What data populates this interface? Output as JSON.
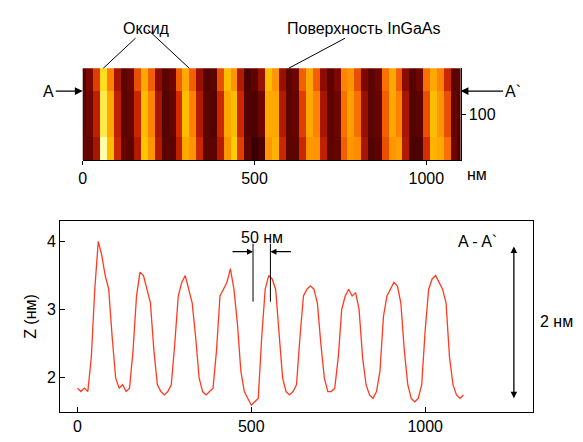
{
  "chart_data": [
    {
      "type": "heatmap",
      "x": [
        0,
        20,
        40,
        60,
        80,
        100,
        120,
        140,
        160,
        180,
        200,
        220,
        240,
        260,
        280,
        300,
        320,
        340,
        360,
        380,
        400,
        420,
        440,
        460,
        480,
        500,
        520,
        540,
        560,
        580,
        600,
        620,
        640,
        660,
        680,
        700,
        720,
        740,
        760,
        780,
        800,
        820,
        840,
        860,
        880,
        900,
        920,
        940,
        960,
        980,
        1000,
        1020,
        1040,
        1060,
        1080,
        1100
      ],
      "y": [
        0,
        100,
        200
      ],
      "z": [
        [
          1.85,
          1.85,
          2.3,
          4.0,
          3.5,
          2.6,
          1.85,
          1.8,
          2.4,
          3.55,
          3.3,
          2.4,
          1.8,
          1.8,
          2.5,
          3.4,
          3.3,
          2.6,
          1.8,
          1.8,
          2.4,
          3.3,
          3.6,
          2.8,
          1.8,
          1.6,
          1.7,
          3.3,
          3.45,
          2.6,
          1.8,
          1.8,
          2.6,
          3.3,
          3.3,
          2.5,
          1.8,
          1.85,
          3.0,
          3.3,
          3.25,
          2.3,
          1.75,
          1.8,
          2.9,
          3.3,
          3.35,
          2.4,
          1.7,
          1.7,
          2.7,
          3.45,
          3.4,
          3.1,
          1.9,
          1.7
        ],
        [
          1.8,
          1.9,
          2.5,
          3.8,
          3.4,
          2.5,
          1.8,
          1.85,
          2.6,
          3.5,
          3.2,
          2.3,
          1.75,
          1.85,
          2.7,
          3.5,
          3.2,
          2.4,
          1.8,
          1.75,
          2.6,
          3.4,
          3.5,
          2.6,
          1.75,
          1.7,
          1.9,
          3.4,
          3.4,
          2.4,
          1.8,
          1.85,
          2.8,
          3.4,
          3.2,
          2.3,
          1.8,
          1.9,
          3.1,
          3.35,
          3.1,
          2.2,
          1.8,
          1.85,
          3.0,
          3.4,
          3.2,
          2.3,
          1.75,
          1.8,
          2.9,
          3.5,
          3.3,
          2.9,
          1.85,
          1.75
        ],
        [
          1.75,
          2.0,
          2.8,
          3.7,
          3.2,
          2.3,
          1.8,
          1.9,
          2.9,
          3.4,
          3.0,
          2.1,
          1.8,
          1.9,
          3.0,
          3.4,
          3.0,
          2.2,
          1.75,
          1.8,
          2.9,
          3.5,
          3.3,
          2.4,
          1.7,
          1.8,
          2.2,
          3.5,
          3.3,
          2.2,
          1.8,
          1.9,
          3.0,
          3.4,
          3.0,
          2.1,
          1.8,
          2.0,
          3.2,
          3.3,
          2.9,
          2.0,
          1.8,
          1.9,
          3.1,
          3.4,
          3.0,
          2.1,
          1.75,
          1.9,
          3.1,
          3.4,
          3.2,
          2.6,
          1.8,
          1.8
        ]
      ],
      "xlim": [
        0,
        1100
      ],
      "xticks": [
        0,
        500,
        1000
      ],
      "ylim": [
        0,
        200
      ],
      "yticks": [
        100
      ],
      "xlabel": "нм",
      "annotations": [
        {
          "text": "Оксид",
          "x": [
            60,
            310
          ],
          "y": 200
        },
        {
          "text": "Поверхность InGaAs",
          "x": 600,
          "y": 200
        },
        {
          "text": "A",
          "x": 0,
          "y": 150
        },
        {
          "text": "A`",
          "x": 1100,
          "y": 150
        }
      ]
    },
    {
      "type": "line",
      "x": [
        0,
        10,
        20,
        30,
        40,
        50,
        60,
        70,
        80,
        90,
        100,
        110,
        120,
        130,
        140,
        150,
        160,
        170,
        180,
        190,
        200,
        210,
        220,
        230,
        240,
        250,
        260,
        270,
        280,
        290,
        300,
        310,
        320,
        330,
        340,
        350,
        360,
        370,
        380,
        390,
        400,
        410,
        420,
        430,
        440,
        450,
        460,
        470,
        480,
        490,
        500,
        510,
        520,
        530,
        540,
        550,
        560,
        570,
        580,
        590,
        600,
        610,
        620,
        630,
        640,
        650,
        660,
        670,
        680,
        690,
        700,
        710,
        720,
        730,
        740,
        750,
        760,
        770,
        780,
        790,
        800,
        810,
        820,
        830,
        840,
        850,
        860,
        870,
        880,
        890,
        900,
        910,
        920,
        930,
        940,
        950,
        960,
        970,
        980,
        990,
        1000,
        1010,
        1020,
        1030,
        1040,
        1050,
        1060,
        1070,
        1080,
        1090,
        1100,
        1110
      ],
      "values": [
        1.85,
        1.8,
        1.85,
        1.8,
        2.3,
        3.3,
        4.0,
        3.8,
        3.5,
        3.3,
        2.6,
        2.0,
        1.85,
        1.9,
        1.8,
        1.85,
        2.4,
        3.2,
        3.55,
        3.5,
        3.3,
        3.1,
        2.4,
        1.9,
        1.8,
        1.75,
        1.8,
        1.9,
        2.5,
        3.2,
        3.4,
        3.5,
        3.3,
        3.1,
        2.6,
        2.0,
        1.8,
        1.75,
        1.8,
        1.85,
        2.4,
        3.2,
        3.3,
        3.4,
        3.6,
        3.3,
        2.8,
        2.1,
        1.8,
        1.7,
        1.6,
        1.65,
        1.7,
        2.6,
        3.3,
        3.5,
        3.45,
        3.3,
        2.6,
        2.0,
        1.8,
        1.75,
        1.8,
        1.9,
        2.6,
        3.2,
        3.3,
        3.35,
        3.3,
        3.1,
        2.5,
        2.0,
        1.8,
        1.8,
        1.85,
        2.3,
        3.0,
        3.2,
        3.3,
        3.2,
        3.25,
        3.0,
        2.3,
        1.9,
        1.75,
        1.7,
        1.8,
        2.1,
        2.9,
        3.2,
        3.3,
        3.4,
        3.35,
        3.1,
        2.4,
        1.9,
        1.7,
        1.65,
        1.7,
        1.9,
        2.7,
        3.3,
        3.45,
        3.5,
        3.4,
        3.3,
        3.1,
        2.3,
        1.9,
        1.75,
        1.7,
        1.75
      ],
      "color": "#ff3b1f",
      "xlim": [
        -50,
        1310
      ],
      "xticks": [
        0,
        500,
        1000
      ],
      "ylim": [
        1.5,
        4.3
      ],
      "yticks": [
        2,
        3,
        4
      ],
      "ylabel": "Z (нм)",
      "annotations": [
        {
          "text": "50 нм",
          "x0": 505,
          "x1": 555,
          "y": 3.85
        },
        {
          "text": "A - A`",
          "x": 1150,
          "y": 4.0
        },
        {
          "text": "2 нм",
          "x": 1255,
          "y0": 1.7,
          "y1": 3.95
        }
      ]
    }
  ]
}
